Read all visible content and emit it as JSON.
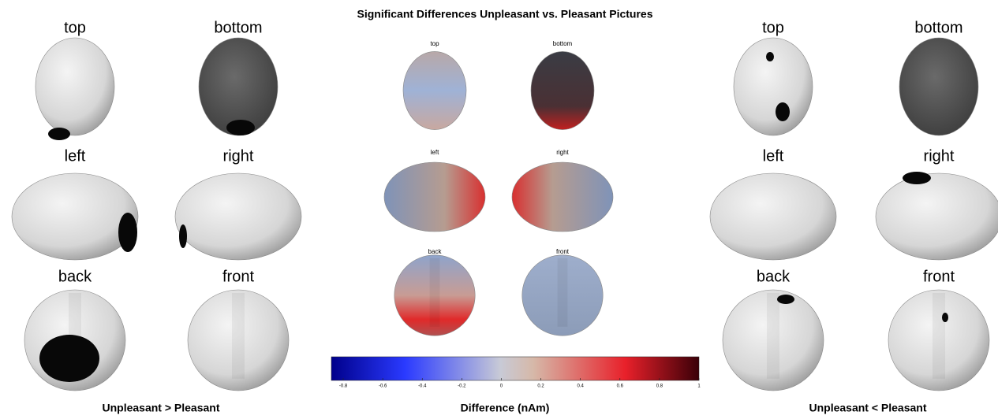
{
  "title": "Significant Differences Unpleasant vs. Pleasant Pictures",
  "left_panel": {
    "caption": "Unpleasant > Pleasant",
    "views": [
      "top",
      "bottom",
      "left",
      "right",
      "back",
      "front"
    ]
  },
  "center_panel": {
    "views": [
      "top",
      "bottom",
      "left",
      "right",
      "back",
      "front"
    ]
  },
  "right_panel": {
    "caption": "Unpleasant < Pleasant",
    "views": [
      "top",
      "bottom",
      "left",
      "right",
      "back",
      "front"
    ]
  },
  "colorbar": {
    "label": "Difference (nAm)",
    "lim": [
      -0.86,
      1
    ],
    "ticks": [
      -0.8,
      -0.6,
      -0.4,
      -0.2,
      0,
      0.2,
      0.4,
      0.6,
      0.8,
      1
    ]
  }
}
